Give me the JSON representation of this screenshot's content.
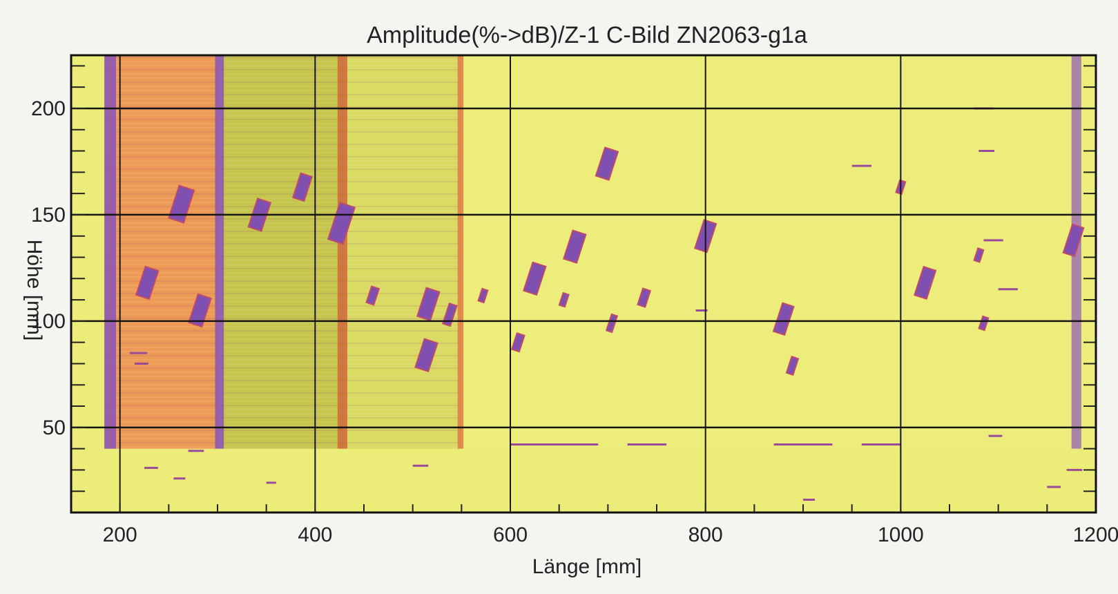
{
  "chart_data": {
    "type": "heatmap",
    "title": "Amplitude(%->dB)/Z-1 C-Bild ZN2063-g1a",
    "xlabel": "Länge [mm]",
    "ylabel": "Höhe [mm]",
    "xlim": [
      150,
      1200
    ],
    "ylim": [
      10,
      225
    ],
    "xticks": [
      200,
      400,
      600,
      800,
      1000,
      1200
    ],
    "yticks": [
      50,
      100,
      150,
      200
    ],
    "grid": true,
    "background_color": "#ecec78",
    "bands": [
      {
        "x0": 185,
        "x1": 300,
        "y0": 40,
        "y1": 225,
        "color": "#ec9a56"
      },
      {
        "x0": 300,
        "x1": 430,
        "y0": 40,
        "y1": 225,
        "color": "#c6c64e"
      },
      {
        "x0": 430,
        "x1": 550,
        "y0": 40,
        "y1": 225,
        "color": "#dada62"
      },
      {
        "x0": 550,
        "x1": 1200,
        "y0": 40,
        "y1": 225,
        "color": "#eded7c"
      }
    ],
    "strip_lines": [
      {
        "x": 190,
        "width": 12,
        "color": "#8a52b8"
      },
      {
        "x": 302,
        "width": 9,
        "color": "#8a52b8"
      },
      {
        "x": 428,
        "width": 10,
        "color": "#d0683c"
      },
      {
        "x": 549,
        "width": 6,
        "color": "#e07a48"
      },
      {
        "x": 1180,
        "width": 10,
        "color": "#a070b0"
      }
    ],
    "defects": [
      {
        "x": 263,
        "y": 155,
        "w": 16,
        "h": 16
      },
      {
        "x": 228,
        "y": 118,
        "w": 14,
        "h": 14
      },
      {
        "x": 282,
        "y": 105,
        "w": 14,
        "h": 14
      },
      {
        "x": 343,
        "y": 150,
        "w": 14,
        "h": 14
      },
      {
        "x": 387,
        "y": 163,
        "w": 12,
        "h": 12
      },
      {
        "x": 427,
        "y": 146,
        "w": 16,
        "h": 18
      },
      {
        "x": 459,
        "y": 112,
        "w": 8,
        "h": 8
      },
      {
        "x": 516,
        "y": 108,
        "w": 14,
        "h": 14
      },
      {
        "x": 514,
        "y": 84,
        "w": 14,
        "h": 14
      },
      {
        "x": 538,
        "y": 103,
        "w": 8,
        "h": 10
      },
      {
        "x": 572,
        "y": 112,
        "w": 6,
        "h": 6
      },
      {
        "x": 608,
        "y": 90,
        "w": 8,
        "h": 8
      },
      {
        "x": 625,
        "y": 120,
        "w": 14,
        "h": 14
      },
      {
        "x": 655,
        "y": 110,
        "w": 6,
        "h": 6
      },
      {
        "x": 666,
        "y": 135,
        "w": 14,
        "h": 14
      },
      {
        "x": 699,
        "y": 174,
        "w": 14,
        "h": 14
      },
      {
        "x": 704,
        "y": 99,
        "w": 6,
        "h": 8
      },
      {
        "x": 737,
        "y": 111,
        "w": 8,
        "h": 8
      },
      {
        "x": 800,
        "y": 140,
        "w": 13,
        "h": 14
      },
      {
        "x": 880,
        "y": 101,
        "w": 12,
        "h": 14
      },
      {
        "x": 889,
        "y": 79,
        "w": 7,
        "h": 8
      },
      {
        "x": 1000,
        "y": 163,
        "w": 6,
        "h": 6
      },
      {
        "x": 1025,
        "y": 118,
        "w": 13,
        "h": 14
      },
      {
        "x": 1080,
        "y": 131,
        "w": 6,
        "h": 6
      },
      {
        "x": 1085,
        "y": 99,
        "w": 6,
        "h": 6
      },
      {
        "x": 1177,
        "y": 138,
        "w": 12,
        "h": 14
      }
    ],
    "dashes": [
      {
        "x": 210,
        "y": 85,
        "len": 18
      },
      {
        "x": 215,
        "y": 80,
        "len": 14
      },
      {
        "x": 270,
        "y": 39,
        "len": 16
      },
      {
        "x": 225,
        "y": 31,
        "len": 14
      },
      {
        "x": 255,
        "y": 26,
        "len": 12
      },
      {
        "x": 350,
        "y": 24,
        "len": 10
      },
      {
        "x": 500,
        "y": 32,
        "len": 16
      },
      {
        "x": 600,
        "y": 42,
        "len": 90
      },
      {
        "x": 720,
        "y": 42,
        "len": 40
      },
      {
        "x": 790,
        "y": 105,
        "len": 12
      },
      {
        "x": 870,
        "y": 42,
        "len": 60
      },
      {
        "x": 960,
        "y": 42,
        "len": 40
      },
      {
        "x": 950,
        "y": 173,
        "len": 20
      },
      {
        "x": 1080,
        "y": 180,
        "len": 16
      },
      {
        "x": 1075,
        "y": 200,
        "len": 20
      },
      {
        "x": 1085,
        "y": 138,
        "len": 20
      },
      {
        "x": 1100,
        "y": 115,
        "len": 20
      },
      {
        "x": 1090,
        "y": 46,
        "len": 14
      },
      {
        "x": 1170,
        "y": 30,
        "len": 16
      },
      {
        "x": 900,
        "y": 16,
        "len": 12
      },
      {
        "x": 1150,
        "y": 22,
        "len": 14
      }
    ]
  }
}
